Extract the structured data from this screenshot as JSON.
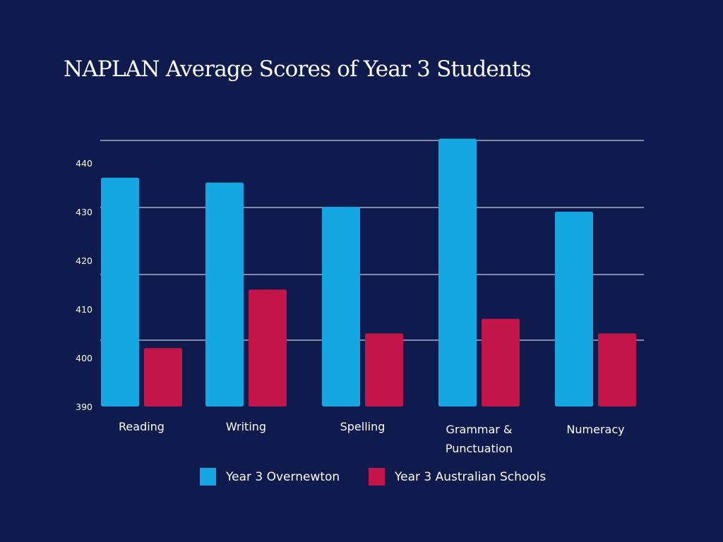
{
  "chart_data": {
    "type": "bar",
    "title": "NAPLAN Average Scores of Year 3 Students",
    "xlabel": "",
    "ylabel": "",
    "categories": [
      "Reading",
      "Writing",
      "Spelling",
      "Grammar & Punctuation",
      "Numeracy"
    ],
    "category_lines": [
      [
        "Reading"
      ],
      [
        "Writing"
      ],
      [
        "Spelling"
      ],
      [
        "Grammar &",
        "Punctuation"
      ],
      [
        "Numeracy"
      ]
    ],
    "series": [
      {
        "name": "Year 3 Overnewton",
        "color": "#14a7e1",
        "values": [
          437,
          436,
          431,
          445,
          430
        ]
      },
      {
        "name": "Year 3 Australian Schools",
        "color": "#c4154a",
        "values": [
          402,
          414,
          405,
          408,
          405
        ]
      }
    ],
    "yticks": [
      390,
      400,
      410,
      420,
      430,
      440
    ],
    "ylim": [
      390,
      445
    ],
    "grid": true,
    "legend_position": "bottom-center",
    "background": "#0f1a4d",
    "gridline_color": "#c8cbe0"
  }
}
